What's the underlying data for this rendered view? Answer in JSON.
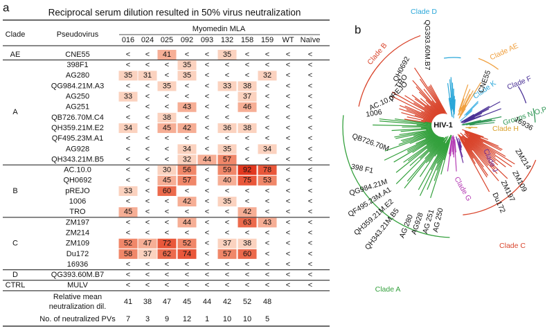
{
  "panel_labels": [
    "a",
    "b"
  ],
  "table": {
    "title": "Reciprocal serum dilution resulted in 50% virus neutralization",
    "headers": {
      "clade": "Clade",
      "pseudovirus": "Pseudovirus",
      "group": "Myomedin MLA",
      "columns": [
        "016",
        "024",
        "025",
        "092",
        "093",
        "132",
        "158",
        "159",
        "WT",
        "Naïve"
      ]
    },
    "groups": [
      {
        "clade": "AE",
        "rows": [
          {
            "name": "CNE55",
            "cells": [
              "<",
              "<",
              41,
              "<",
              "<",
              35,
              "<",
              "<",
              "<",
              "<"
            ]
          }
        ]
      },
      {
        "clade": "A",
        "rows": [
          {
            "name": "398F1",
            "cells": [
              "<",
              "<",
              "<",
              35,
              "<",
              "<",
              "<",
              "<",
              "<",
              "<"
            ]
          },
          {
            "name": "AG280",
            "cells": [
              35,
              31,
              "<",
              35,
              "<",
              "<",
              "<",
              32,
              "<",
              "<"
            ]
          },
          {
            "name": "QG984.21M.A3",
            "cells": [
              "<",
              "<",
              35,
              "<",
              "<",
              33,
              38,
              "<",
              "<",
              "<"
            ]
          },
          {
            "name": "AG250",
            "cells": [
              33,
              "<",
              "<",
              "<",
              "<",
              "<",
              37,
              "<",
              "<",
              "<"
            ]
          },
          {
            "name": "AG251",
            "cells": [
              "<",
              "<",
              "<",
              43,
              "<",
              "<",
              46,
              "<",
              "<",
              "<"
            ]
          },
          {
            "name": "QB726.70M.C4",
            "cells": [
              "<",
              "<",
              38,
              "<",
              "<",
              "<",
              "<",
              "<",
              "<",
              "<"
            ]
          },
          {
            "name": "QH359.21M.E2",
            "cells": [
              34,
              "<",
              45,
              42,
              "<",
              36,
              38,
              "<",
              "<",
              "<"
            ]
          },
          {
            "name": "QF495.23M.A1",
            "cells": [
              "<",
              "<",
              "<",
              "<",
              "<",
              "<",
              "<",
              "<",
              "<",
              "<"
            ]
          },
          {
            "name": "AG928",
            "cells": [
              "<",
              "<",
              "<",
              34,
              "<",
              35,
              "<",
              34,
              "<",
              "<"
            ]
          },
          {
            "name": "QH343.21M.B5",
            "cells": [
              "<",
              "<",
              "<",
              32,
              44,
              57,
              "<",
              "<",
              "<",
              "<"
            ]
          }
        ]
      },
      {
        "clade": "B",
        "rows": [
          {
            "name": "AC.10.0",
            "cells": [
              "<",
              "<",
              30,
              56,
              "<",
              59,
              92,
              78,
              "<",
              "<"
            ]
          },
          {
            "name": "QH0692",
            "cells": [
              "<",
              "<",
              45,
              57,
              "<",
              40,
              75,
              53,
              "<",
              "<"
            ]
          },
          {
            "name": "pREJO",
            "cells": [
              33,
              "<",
              60,
              "<",
              "<",
              "<",
              "<",
              "<",
              "<",
              "<"
            ]
          },
          {
            "name": "1006",
            "cells": [
              "<",
              "<",
              "<",
              42,
              "<",
              35,
              "<",
              "<",
              "<",
              "<"
            ]
          },
          {
            "name": "TRO",
            "cells": [
              45,
              "<",
              "<",
              "<",
              "<",
              "<",
              42,
              "<",
              "<",
              "<"
            ]
          }
        ]
      },
      {
        "clade": "C",
        "rows": [
          {
            "name": "ZM197",
            "cells": [
              "<",
              "<",
              "<",
              44,
              "<",
              "<",
              63,
              43,
              "<",
              "<"
            ]
          },
          {
            "name": "ZM214",
            "cells": [
              "<",
              "<",
              "<",
              "<",
              "<",
              "<",
              "<",
              "<",
              "<",
              "<"
            ]
          },
          {
            "name": "ZM109",
            "cells": [
              52,
              47,
              72,
              52,
              "<",
              37,
              38,
              "<",
              "<",
              "<"
            ]
          },
          {
            "name": "Du172",
            "cells": [
              58,
              37,
              62,
              74,
              "<",
              57,
              60,
              "<",
              "<",
              "<"
            ]
          },
          {
            "name": "16936",
            "cells": [
              "<",
              "<",
              "<",
              "<",
              "<",
              "<",
              "<",
              "<",
              "<",
              "<"
            ]
          }
        ]
      },
      {
        "clade": "D",
        "rows": [
          {
            "name": "QG393.60M.B7",
            "cells": [
              "<",
              "<",
              "<",
              "<",
              "<",
              "<",
              "<",
              "<",
              "<",
              "<"
            ]
          }
        ]
      },
      {
        "clade": "CTRL",
        "rows": [
          {
            "name": "MULV",
            "cells": [
              "<",
              "<",
              "<",
              "<",
              "<",
              "<",
              "<",
              "<",
              "<",
              "<"
            ]
          }
        ]
      }
    ],
    "summary": [
      {
        "label": [
          "Relative mean",
          "neutralization dil."
        ],
        "values": [
          41,
          38,
          47,
          45,
          44,
          42,
          52,
          48
        ]
      },
      {
        "label": [
          "No. of neutralized PVs"
        ],
        "values": [
          7,
          3,
          9,
          12,
          1,
          10,
          10,
          5
        ]
      }
    ]
  },
  "tree": {
    "root": "HIV-1",
    "clades": [
      "Clade B",
      "Clade D",
      "Clade AE",
      "Clade K",
      "Clade F",
      "Groups N,O,P",
      "Clade H",
      "Clade J",
      "Clade G",
      "Clade C",
      "Clade A"
    ],
    "leaves": [
      "QH0692",
      "TRO",
      "pREJO",
      "AC.10.0",
      "1006",
      "QG393.60M.B7",
      "CNE55",
      "QB726.70M",
      "398 F1",
      "QG984.21M",
      "QF495.23M.A1",
      "QH359.21M.E2",
      "QH343.21M.B5",
      "AG 280",
      "AG928",
      "AG 251",
      "AG 250",
      "16936",
      "ZM214",
      "ZM109",
      "ZM197",
      "Du172"
    ]
  }
}
